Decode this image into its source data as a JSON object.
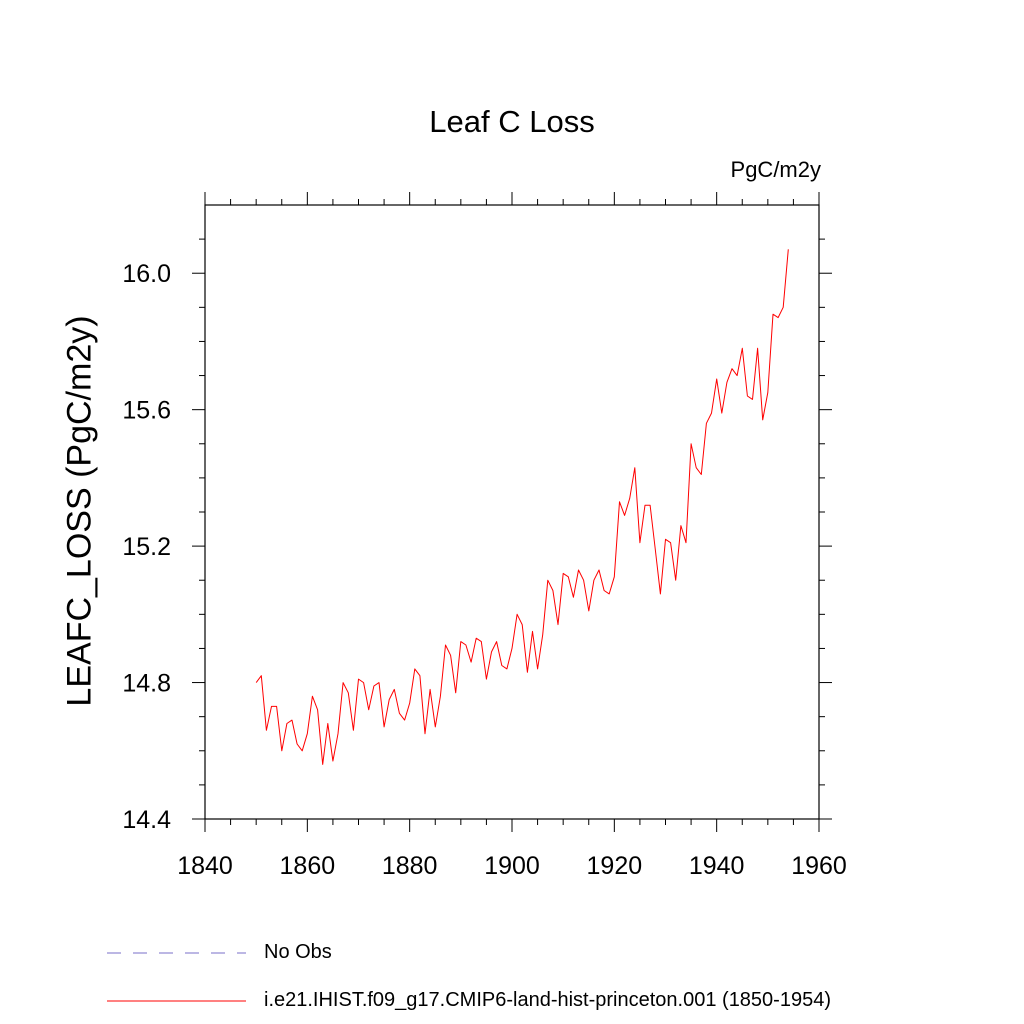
{
  "chart_data": {
    "type": "line",
    "title": "Leaf C Loss",
    "units_label": "PgC/m2y",
    "ylabel": "LEAFC_LOSS  (PgC/m2y)",
    "xlabel": "",
    "xlim": [
      1840,
      1960
    ],
    "ylim": [
      14.4,
      16.2
    ],
    "x_ticks": [
      1840,
      1860,
      1880,
      1900,
      1920,
      1940,
      1960
    ],
    "y_ticks": [
      14.4,
      14.8,
      15.2,
      15.6,
      16.0
    ],
    "x_tick_labels": [
      "1840",
      "1860",
      "1880",
      "1900",
      "1920",
      "1940",
      "1960"
    ],
    "y_tick_labels": [
      "14.4",
      "14.8",
      "15.2",
      "15.6",
      "16.0"
    ],
    "series": [
      {
        "name": "i.e21.IHIST.f09_g17.CMIP6-land-hist-princeton.001 (1850-1954)",
        "color": "#ff0000",
        "style": "solid",
        "x": [
          1850,
          1851,
          1852,
          1853,
          1854,
          1855,
          1856,
          1857,
          1858,
          1859,
          1860,
          1861,
          1862,
          1863,
          1864,
          1865,
          1866,
          1867,
          1868,
          1869,
          1870,
          1871,
          1872,
          1873,
          1874,
          1875,
          1876,
          1877,
          1878,
          1879,
          1880,
          1881,
          1882,
          1883,
          1884,
          1885,
          1886,
          1887,
          1888,
          1889,
          1890,
          1891,
          1892,
          1893,
          1894,
          1895,
          1896,
          1897,
          1898,
          1899,
          1900,
          1901,
          1902,
          1903,
          1904,
          1905,
          1906,
          1907,
          1908,
          1909,
          1910,
          1911,
          1912,
          1913,
          1914,
          1915,
          1916,
          1917,
          1918,
          1919,
          1920,
          1921,
          1922,
          1923,
          1924,
          1925,
          1926,
          1927,
          1928,
          1929,
          1930,
          1931,
          1932,
          1933,
          1934,
          1935,
          1936,
          1937,
          1938,
          1939,
          1940,
          1941,
          1942,
          1943,
          1944,
          1945,
          1946,
          1947,
          1948,
          1949,
          1950,
          1951,
          1952,
          1953,
          1954
        ],
        "y": [
          14.8,
          14.82,
          14.66,
          14.73,
          14.73,
          14.6,
          14.68,
          14.69,
          14.62,
          14.6,
          14.65,
          14.76,
          14.72,
          14.56,
          14.68,
          14.57,
          14.65,
          14.8,
          14.77,
          14.66,
          14.81,
          14.8,
          14.72,
          14.79,
          14.8,
          14.67,
          14.75,
          14.78,
          14.71,
          14.69,
          14.74,
          14.84,
          14.82,
          14.65,
          14.78,
          14.67,
          14.76,
          14.91,
          14.88,
          14.77,
          14.92,
          14.91,
          14.86,
          14.93,
          14.92,
          14.81,
          14.89,
          14.92,
          14.85,
          14.84,
          14.9,
          15.0,
          14.97,
          14.83,
          14.95,
          14.84,
          14.94,
          15.1,
          15.07,
          14.97,
          15.12,
          15.11,
          15.05,
          15.13,
          15.1,
          15.01,
          15.1,
          15.13,
          15.07,
          15.06,
          15.11,
          15.33,
          15.29,
          15.34,
          15.43,
          15.21,
          15.32,
          15.32,
          15.19,
          15.06,
          15.22,
          15.21,
          15.1,
          15.26,
          15.21,
          15.5,
          15.43,
          15.41,
          15.56,
          15.59,
          15.69,
          15.59,
          15.68,
          15.72,
          15.7,
          15.78,
          15.64,
          15.63,
          15.78,
          15.57,
          15.65,
          15.88,
          15.87,
          15.9,
          16.07
        ]
      },
      {
        "name": "No Obs",
        "color": "#7a6fc8",
        "style": "dashed",
        "x": [],
        "y": []
      }
    ],
    "grid": false,
    "legend_position": "bottom-left"
  }
}
